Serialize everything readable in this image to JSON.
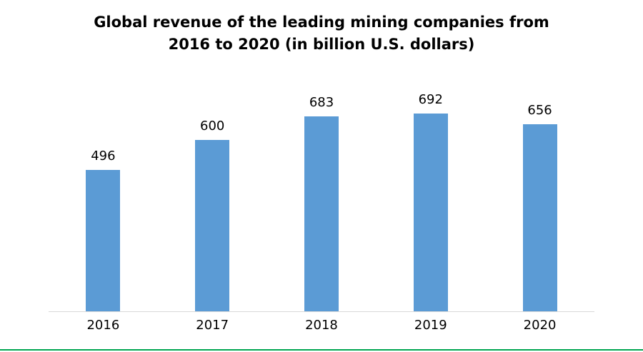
{
  "chart_data": {
    "type": "bar",
    "title": "Global revenue of the leading mining companies from 2016 to 2020 (in billion U.S. dollars)",
    "title_line1": "Global revenue of the leading mining companies from",
    "title_line2": "2016 to 2020 (in billion U.S. dollars)",
    "categories": [
      "2016",
      "2017",
      "2018",
      "2019",
      "2020"
    ],
    "values": [
      496,
      600,
      683,
      692,
      656
    ],
    "xlabel": "",
    "ylabel": "",
    "ylim": [
      0,
      825
    ],
    "grid": false,
    "legend": false,
    "data_labels": true,
    "bar_color": "#5b9bd5",
    "axis_color": "#d9d9d9",
    "accent_color": "#00a651",
    "text_color": "#000000"
  }
}
